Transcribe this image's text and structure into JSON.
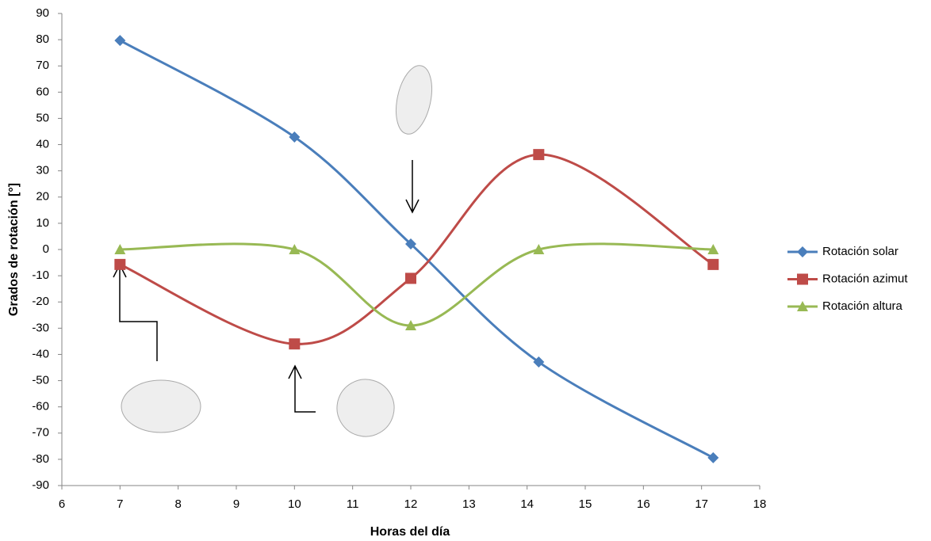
{
  "chart_data": {
    "type": "line",
    "xlabel": "Horas del día",
    "ylabel": "Grados de rotación [°]",
    "xlim": [
      6,
      18
    ],
    "xticks": [
      6,
      7,
      8,
      9,
      10,
      11,
      12,
      13,
      14,
      15,
      16,
      17,
      18
    ],
    "ylim": [
      -90,
      90
    ],
    "yticks": [
      -90,
      -80,
      -70,
      -60,
      -50,
      -40,
      -30,
      -20,
      -10,
      0,
      10,
      20,
      30,
      40,
      50,
      60,
      70,
      80,
      90
    ],
    "grid": false,
    "legend": "right",
    "smooth": true,
    "series": [
      {
        "name": "Rotación solar",
        "color": "#4a7ebb",
        "marker": "diamond",
        "x": [
          7,
          10,
          12,
          14.2,
          17.2
        ],
        "values": [
          79.7,
          42.9,
          2.1,
          -42.9,
          -79.4
        ]
      },
      {
        "name": "Rotación azimut",
        "color": "#be4b48",
        "marker": "square",
        "x": [
          7,
          10,
          12,
          14.2,
          17.2
        ],
        "values": [
          -5.7,
          -36,
          -11,
          36.2,
          -5.7
        ]
      },
      {
        "name": "Rotación altura",
        "color": "#98b954",
        "marker": "triangle",
        "x": [
          7,
          10,
          12,
          14.2,
          17.2
        ],
        "values": [
          0,
          0,
          -29,
          0,
          0
        ]
      }
    ]
  }
}
